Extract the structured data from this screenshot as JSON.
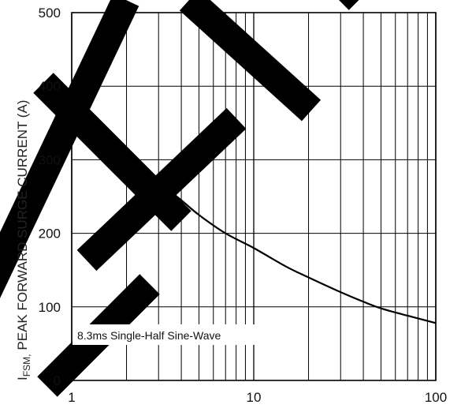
{
  "chart_data": {
    "type": "line",
    "title": "",
    "xlabel": "",
    "ylabel": {
      "symbol": "I",
      "subscript": "FSM,",
      "text": "PEAK FORWARD SURGE CURRENT (A)"
    },
    "x_scale": "log",
    "xlim": [
      1,
      100
    ],
    "ylim": [
      0,
      500
    ],
    "x_ticks": [
      1,
      10,
      100
    ],
    "x_tick_labels": [
      "1",
      "10",
      "100"
    ],
    "y_ticks": [
      0,
      100,
      200,
      300,
      400,
      500
    ],
    "y_tick_labels": [
      "0",
      "100",
      "200",
      "300",
      "400",
      "500"
    ],
    "grid": true,
    "annotation": "8.3ms Single-Half Sine-Wave",
    "series": [
      {
        "x": [
          1,
          1.5,
          2,
          3,
          4,
          5,
          7,
          10,
          15,
          20,
          30,
          40,
          50,
          70,
          100
        ],
        "y": [
          390,
          340,
          310,
          270,
          245,
          225,
          200,
          180,
          155,
          140,
          120,
          107,
          98,
          88,
          78
        ]
      }
    ]
  }
}
